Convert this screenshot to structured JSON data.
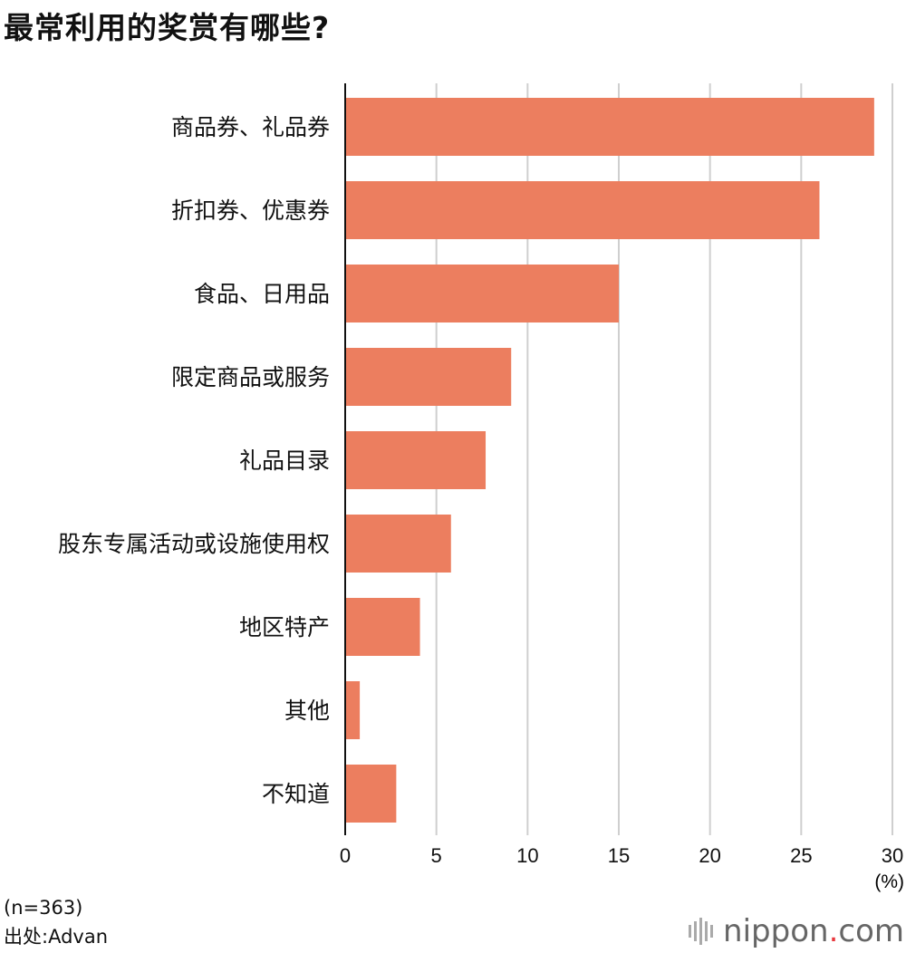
{
  "title": "最常利用的奖赏有哪些?",
  "chart_data": {
    "type": "bar",
    "orientation": "horizontal",
    "categories": [
      "商品券、礼品券",
      "折扣券、优惠券",
      "食品、日用品",
      "限定商品或服务",
      "礼品目录",
      "股东专属活动或设施使用权",
      "地区特产",
      "其他",
      "不知道"
    ],
    "values": [
      29,
      26,
      15,
      9.1,
      7.7,
      5.8,
      4.1,
      0.8,
      2.8
    ],
    "xlim": [
      0,
      30
    ],
    "xticks": [
      "0",
      "5",
      "10",
      "15",
      "20",
      "25",
      "30"
    ],
    "unit_label": "(%)",
    "bar_color": "#ec7e5f",
    "grid": true
  },
  "footer": {
    "sample": "(n=363)",
    "source": "出处:Advan",
    "logo": {
      "name": "nippon",
      "dot": ".",
      "tld": "com"
    }
  }
}
